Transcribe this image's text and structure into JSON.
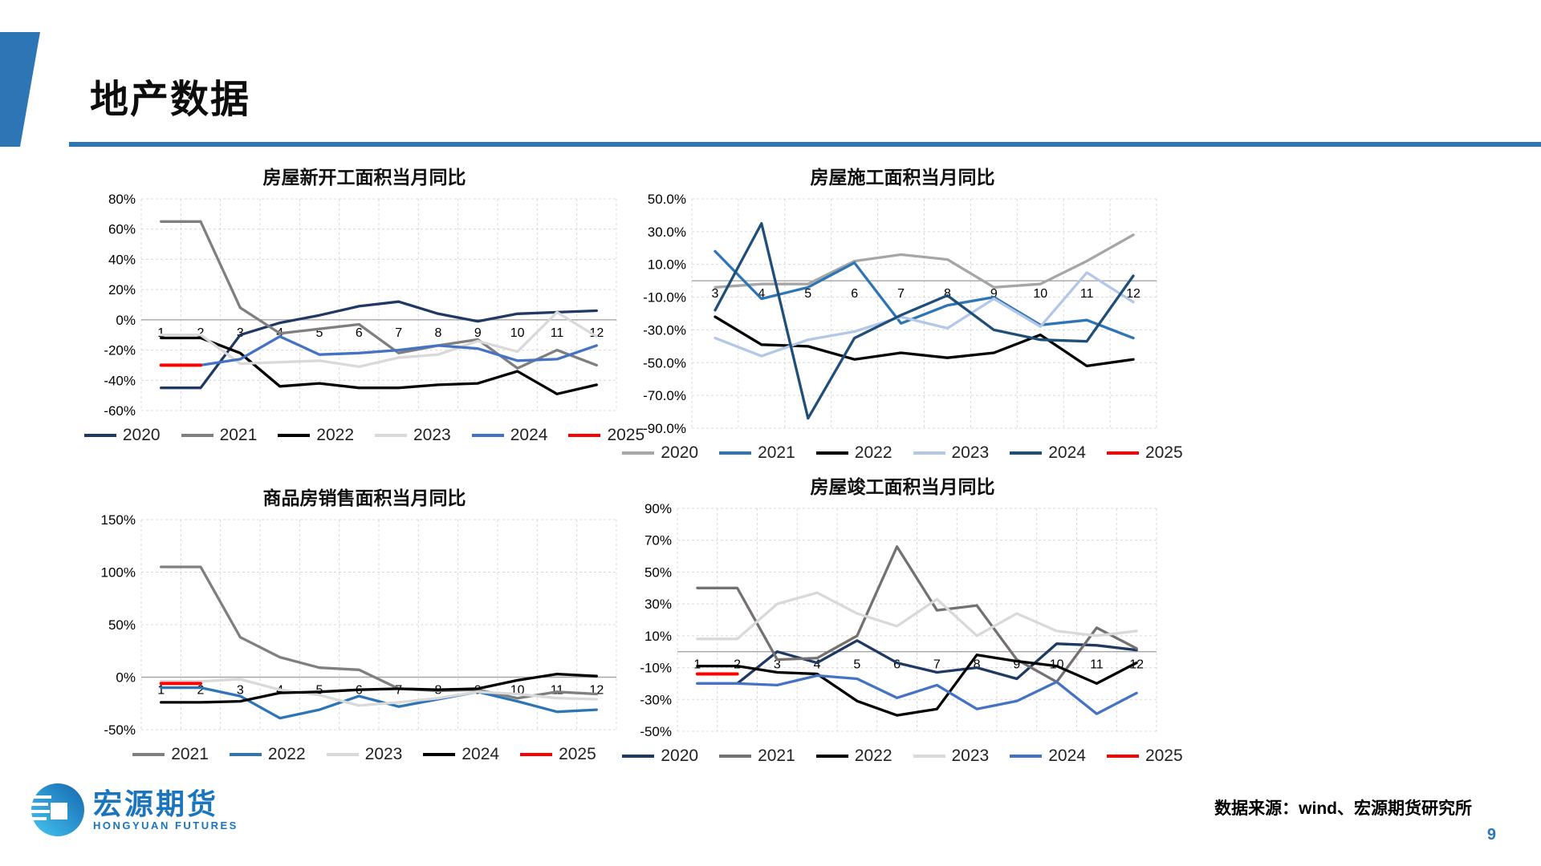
{
  "page": {
    "title": "地产数据",
    "source_note": "数据来源：wind、宏源期货研究所",
    "page_number": "9",
    "accent_color": "#2E75B6"
  },
  "logo": {
    "name_cn": "宏源期货",
    "name_en": "HONGYUAN FUTURES",
    "brand_color": "#1B75BC"
  },
  "chart_data": [
    {
      "type": "line",
      "title": "房屋新开工面积当月同比",
      "categories": [
        "1",
        "2",
        "3",
        "4",
        "5",
        "6",
        "7",
        "8",
        "9",
        "10",
        "11",
        "12"
      ],
      "ylim": [
        -60,
        80
      ],
      "grid": true,
      "legend_position": "bottom",
      "yticks": {
        "values": [
          80,
          60,
          40,
          20,
          0,
          -20,
          -40,
          -60
        ],
        "labels": [
          "80%",
          "60%",
          "40%",
          "20%",
          "0%",
          "-20%",
          "-40%",
          "-60%"
        ]
      },
      "series": [
        {
          "name": "2020",
          "color": "#1F3864",
          "values": [
            -45,
            -45,
            -10,
            -2,
            3,
            9,
            12,
            4,
            -1,
            4,
            5,
            6
          ]
        },
        {
          "name": "2021",
          "color": "#7F7F7F",
          "values": [
            65,
            65,
            8,
            -9,
            -6,
            -3,
            -22,
            -17,
            -13,
            -32,
            -20,
            -30
          ]
        },
        {
          "name": "2022",
          "color": "#000000",
          "values": [
            -12,
            -12,
            -22,
            -44,
            -42,
            -45,
            -45,
            -43,
            -42,
            -34,
            -49,
            -43
          ]
        },
        {
          "name": "2023",
          "color": "#D9D9D9",
          "values": [
            -10,
            -10,
            -29,
            -28,
            -27,
            -31,
            -25,
            -23,
            -14,
            -21,
            5,
            -11
          ]
        },
        {
          "name": "2024",
          "color": "#4472C4",
          "values": [
            null,
            -30,
            -26,
            -11,
            -23,
            -22,
            -20,
            -17,
            -19,
            -27,
            -26,
            -17
          ]
        },
        {
          "name": "2025",
          "color": "#FF0000",
          "values": [
            -30,
            -30,
            null,
            null,
            null,
            null,
            null,
            null,
            null,
            null,
            null,
            null
          ]
        }
      ]
    },
    {
      "type": "line",
      "title": "房屋施工面积当月同比",
      "categories": [
        "3",
        "4",
        "5",
        "6",
        "7",
        "8",
        "9",
        "10",
        "11",
        "12"
      ],
      "ylim": [
        -90,
        50
      ],
      "grid": true,
      "legend_position": "bottom",
      "yticks": {
        "values": [
          50,
          30,
          10,
          -10,
          -30,
          -50,
          -70,
          -90
        ],
        "labels": [
          "50.0%",
          "30.0%",
          "10.0%",
          "-10.0%",
          "-30.0%",
          "-50.0%",
          "-70.0%",
          "-90.0%"
        ]
      },
      "series": [
        {
          "name": "2020",
          "color": "#A6A6A6",
          "values": [
            -4,
            -2,
            -2,
            12,
            16,
            13,
            -4,
            -2,
            12,
            28
          ]
        },
        {
          "name": "2021",
          "color": "#2E75B6",
          "values": [
            18,
            -11,
            -4,
            11,
            -26,
            -15,
            -10,
            -27,
            -24,
            -35
          ]
        },
        {
          "name": "2022",
          "color": "#000000",
          "values": [
            -22,
            -39,
            -40,
            -48,
            -44,
            -47,
            -44,
            -33,
            -52,
            -48
          ]
        },
        {
          "name": "2023",
          "color": "#B4C7E7",
          "values": [
            -35,
            -46,
            -36,
            -31,
            -22,
            -29,
            -11,
            -28,
            5,
            -13
          ]
        },
        {
          "name": "2024",
          "color": "#1F4E79",
          "values": [
            -18,
            35,
            -84,
            -35,
            -21,
            -9,
            -30,
            -36,
            -37,
            3
          ]
        },
        {
          "name": "2025",
          "color": "#FF0000",
          "values": [
            null,
            null,
            null,
            null,
            null,
            null,
            null,
            null,
            null,
            null
          ]
        }
      ]
    },
    {
      "type": "line",
      "title": "商品房销售面积当月同比",
      "categories": [
        "1",
        "2",
        "3",
        "4",
        "5",
        "6",
        "7",
        "8",
        "9",
        "10",
        "11",
        "12"
      ],
      "ylim": [
        -50,
        150
      ],
      "grid": true,
      "legend_position": "bottom",
      "yticks": {
        "values": [
          150,
          100,
          50,
          0,
          -50
        ],
        "labels": [
          "150%",
          "100%",
          "50%",
          "0%",
          "-50%"
        ]
      },
      "series": [
        {
          "name": "2021",
          "color": "#7F7F7F",
          "values": [
            105,
            105,
            38,
            19,
            9,
            7,
            -11,
            -13,
            -12,
            -20,
            -14,
            -16
          ]
        },
        {
          "name": "2022",
          "color": "#2E75B6",
          "values": [
            -10,
            -10,
            -18,
            -39,
            -31,
            -18,
            -28,
            -21,
            -14,
            -23,
            -33,
            -31
          ]
        },
        {
          "name": "2023",
          "color": "#D9D9D9",
          "values": [
            -4,
            -4,
            -2,
            -12,
            -17,
            -27,
            -24,
            -20,
            -14,
            -16,
            -20,
            -21
          ]
        },
        {
          "name": "2024",
          "color": "#000000",
          "values": [
            -24,
            -24,
            -23,
            -15,
            -14,
            -12,
            -11,
            -12,
            -11,
            -3,
            3,
            1
          ]
        },
        {
          "name": "2025",
          "color": "#FF0000",
          "values": [
            -6,
            -6,
            null,
            null,
            null,
            null,
            null,
            null,
            null,
            null,
            null,
            null
          ]
        }
      ]
    },
    {
      "type": "line",
      "title": "房屋竣工面积当月同比",
      "categories": [
        "1",
        "2",
        "3",
        "4",
        "5",
        "6",
        "7",
        "8",
        "9",
        "10",
        "11",
        "12"
      ],
      "ylim": [
        -50,
        90
      ],
      "grid": true,
      "legend_position": "bottom",
      "yticks": {
        "values": [
          90,
          70,
          50,
          30,
          10,
          -10,
          -30,
          -50
        ],
        "labels": [
          "90%",
          "70%",
          "50%",
          "30%",
          "10%",
          "-10%",
          "-30%",
          "-50%"
        ]
      },
      "series": [
        {
          "name": "2020",
          "color": "#1F3864",
          "values": [
            -20,
            -20,
            0,
            -7,
            7,
            -7,
            -13,
            -10,
            -17,
            5,
            4,
            1
          ]
        },
        {
          "name": "2021",
          "color": "#767171",
          "values": [
            40,
            40,
            -5,
            -4,
            10,
            66,
            26,
            29,
            -5,
            -19,
            15,
            2
          ]
        },
        {
          "name": "2022",
          "color": "#000000",
          "values": [
            -9,
            -9,
            -13,
            -14,
            -31,
            -40,
            -36,
            -2,
            -6,
            -9,
            -20,
            -7
          ]
        },
        {
          "name": "2023",
          "color": "#D9D9D9",
          "values": [
            8,
            8,
            30,
            37,
            24,
            16,
            33,
            10,
            24,
            13,
            10,
            13
          ]
        },
        {
          "name": "2024",
          "color": "#4472C4",
          "values": [
            -20,
            -20,
            -21,
            -15,
            -17,
            -29,
            -21,
            -36,
            -31,
            -19,
            -39,
            -26
          ]
        },
        {
          "name": "2025",
          "color": "#FF0000",
          "values": [
            -14,
            -14,
            null,
            null,
            null,
            null,
            null,
            null,
            null,
            null,
            null,
            null
          ]
        }
      ]
    }
  ]
}
